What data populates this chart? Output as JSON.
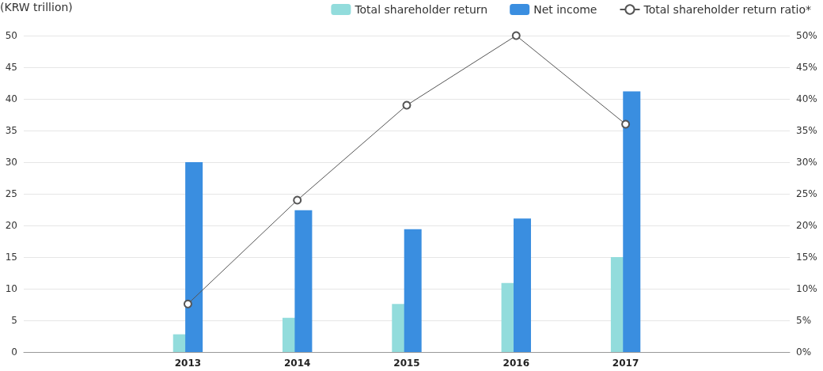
{
  "chart_data": {
    "type": "bar",
    "ylabel": "(KRW trillion)",
    "categories": [
      null,
      "2013",
      "2014",
      "2015",
      "2016",
      "2017",
      null
    ],
    "series": [
      {
        "name": "Total shareholder return",
        "color": "#92dcdc",
        "values": [
          null,
          2.8,
          5.4,
          7.6,
          10.9,
          15,
          null
        ]
      },
      {
        "name": "Net income",
        "color": "#3a8ee0",
        "values": [
          null,
          30,
          22.4,
          19.4,
          21.1,
          41.2,
          null
        ]
      },
      {
        "name": "Total shareholder return ratio*",
        "type": "line",
        "axis": "y2",
        "color": "#555555",
        "marker": "circle",
        "values": [
          null,
          7.6,
          24,
          39,
          50,
          36,
          null
        ]
      }
    ],
    "ylim": [
      0,
      50
    ],
    "yticks": [
      0,
      5,
      10,
      15,
      20,
      25,
      30,
      35,
      40,
      45,
      50
    ],
    "y2lim": [
      0,
      50
    ],
    "y2ticks": [
      {
        "value": 0,
        "label": "0%"
      },
      {
        "value": 5,
        "label": "5%"
      },
      {
        "value": 10,
        "label": "10%"
      },
      {
        "value": 15,
        "label": "15%"
      },
      {
        "value": 20,
        "label": "20%"
      },
      {
        "value": 25,
        "label": "25%"
      },
      {
        "value": 30,
        "label": "30%"
      },
      {
        "value": 35,
        "label": "35%"
      },
      {
        "value": 40,
        "label": "40%"
      },
      {
        "value": 45,
        "label": "45%"
      },
      {
        "value": 50,
        "label": "50%"
      }
    ],
    "grid": "y",
    "legend": "top right"
  }
}
